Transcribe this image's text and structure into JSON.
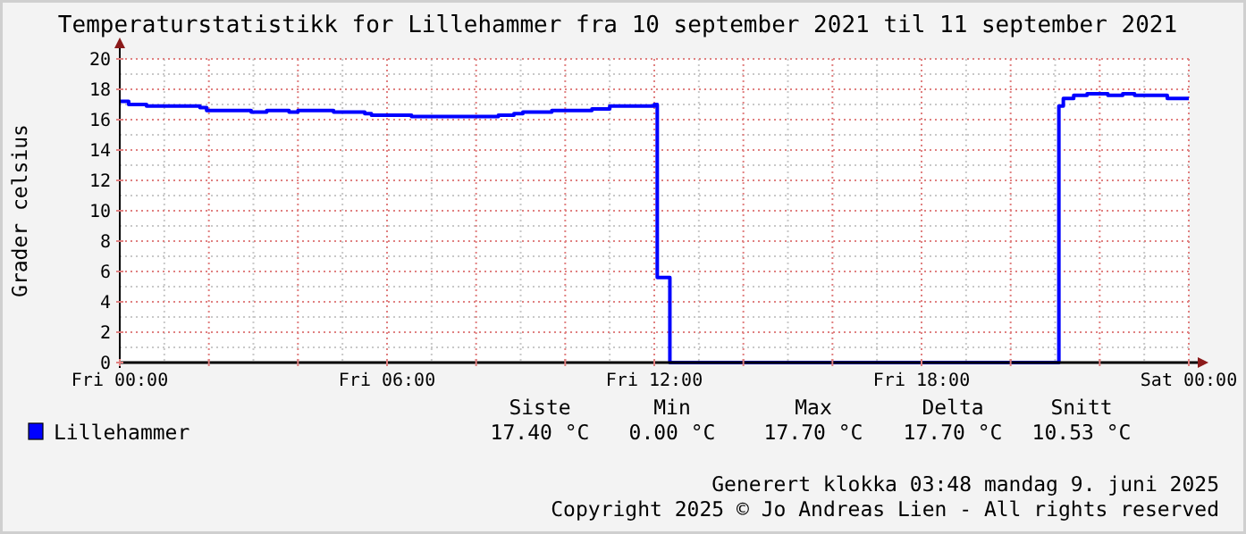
{
  "chart_data": {
    "type": "step",
    "title": "Temperaturstatistikk for Lillehammer fra 10 september 2021 til 11 september 2021",
    "ylabel": "Grader celsius",
    "x": [
      "2021-09-10T00:00",
      "2021-09-10T00:12",
      "2021-09-10T00:36",
      "2021-09-10T01:48",
      "2021-09-10T01:57",
      "2021-09-10T02:57",
      "2021-09-10T03:18",
      "2021-09-10T03:48",
      "2021-09-10T04:00",
      "2021-09-10T04:48",
      "2021-09-10T05:30",
      "2021-09-10T05:39",
      "2021-09-10T06:33",
      "2021-09-10T08:30",
      "2021-09-10T08:51",
      "2021-09-10T09:03",
      "2021-09-10T09:42",
      "2021-09-10T10:36",
      "2021-09-10T11:00",
      "2021-09-10T12:00",
      "2021-09-10T12:04",
      "2021-09-10T12:21",
      "2021-09-10T21:05",
      "2021-09-10T21:11",
      "2021-09-10T21:25",
      "2021-09-10T21:43",
      "2021-09-10T22:11",
      "2021-09-10T22:31",
      "2021-09-10T22:47",
      "2021-09-10T23:31",
      "2021-09-11T00:00"
    ],
    "series": [
      {
        "name": "Lillehammer",
        "color": "#0000ff",
        "values": [
          17.2,
          17.0,
          16.9,
          16.8,
          16.6,
          16.5,
          16.6,
          16.5,
          16.6,
          16.5,
          16.4,
          16.3,
          16.2,
          16.3,
          16.4,
          16.5,
          16.6,
          16.7,
          16.9,
          17.0,
          5.6,
          0,
          16.9,
          17.4,
          17.6,
          17.7,
          17.6,
          17.7,
          17.6,
          17.4,
          17.4
        ]
      }
    ],
    "xlim": [
      "2021-09-10T00:00",
      "2021-09-11T00:00"
    ],
    "xticks": [
      {
        "value": "2021-09-10T00:00",
        "label": "Fri 00:00"
      },
      {
        "value": "2021-09-10T02:00",
        "label": null
      },
      {
        "value": "2021-09-10T04:00",
        "label": null
      },
      {
        "value": "2021-09-10T06:00",
        "label": "Fri 06:00"
      },
      {
        "value": "2021-09-10T08:00",
        "label": null
      },
      {
        "value": "2021-09-10T10:00",
        "label": null
      },
      {
        "value": "2021-09-10T12:00",
        "label": "Fri 12:00"
      },
      {
        "value": "2021-09-10T14:00",
        "label": null
      },
      {
        "value": "2021-09-10T16:00",
        "label": null
      },
      {
        "value": "2021-09-10T18:00",
        "label": "Fri 18:00"
      },
      {
        "value": "2021-09-10T20:00",
        "label": null
      },
      {
        "value": "2021-09-10T22:00",
        "label": null
      },
      {
        "value": "2021-09-11T00:00",
        "label": "Sat 00:00"
      }
    ],
    "ylim": [
      0,
      20
    ],
    "yticks": [
      0,
      2,
      4,
      6,
      8,
      10,
      12,
      14,
      16,
      18,
      20
    ],
    "grid": true,
    "legend": "bottom left",
    "annotations": [
      "Siste",
      "Min",
      "Max",
      "Delta",
      "Snitt",
      "17.40 °C",
      "0.00 °C",
      "17.70 °C",
      "17.70 °C",
      "10.53 °C",
      "Generert klokka 03:48 mandag 9. juni 2025",
      "Copyright 2025 © Jo Andreas Lien - All rights reserved"
    ]
  }
}
